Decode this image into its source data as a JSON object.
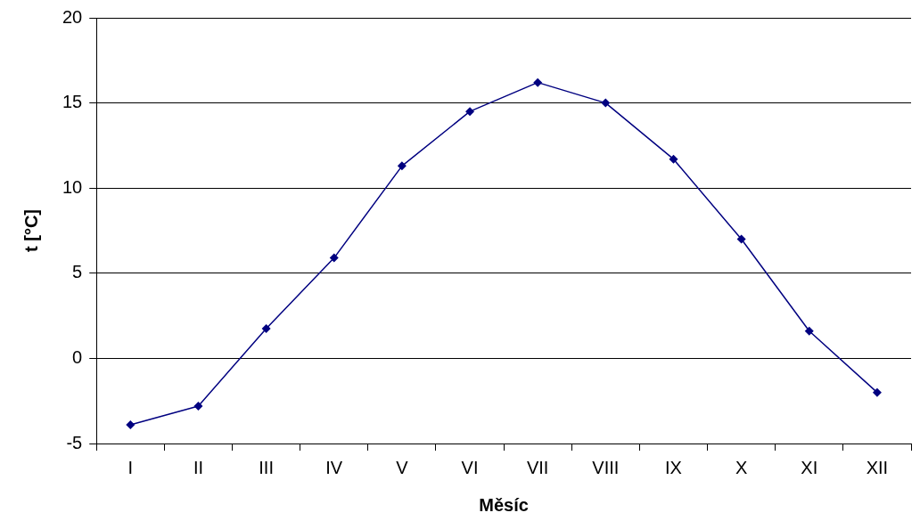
{
  "chart_data": {
    "type": "line",
    "xlabel": "Měsíc",
    "ylabel": "t [°C]",
    "categories": [
      "I",
      "II",
      "III",
      "IV",
      "V",
      "VI",
      "VII",
      "VIII",
      "IX",
      "X",
      "XI",
      "XII"
    ],
    "series": [
      {
        "color": "#000080",
        "values": [
          -3.9,
          -2.8,
          1.75,
          5.9,
          11.3,
          14.5,
          16.2,
          15.0,
          11.7,
          7.0,
          1.6,
          -2.0
        ]
      }
    ],
    "ylim": [
      -5,
      20
    ],
    "yticks": [
      -5,
      0,
      5,
      10,
      15,
      20
    ],
    "grid": "y",
    "legend": false,
    "marker": "diamond",
    "line_style": "solid"
  }
}
